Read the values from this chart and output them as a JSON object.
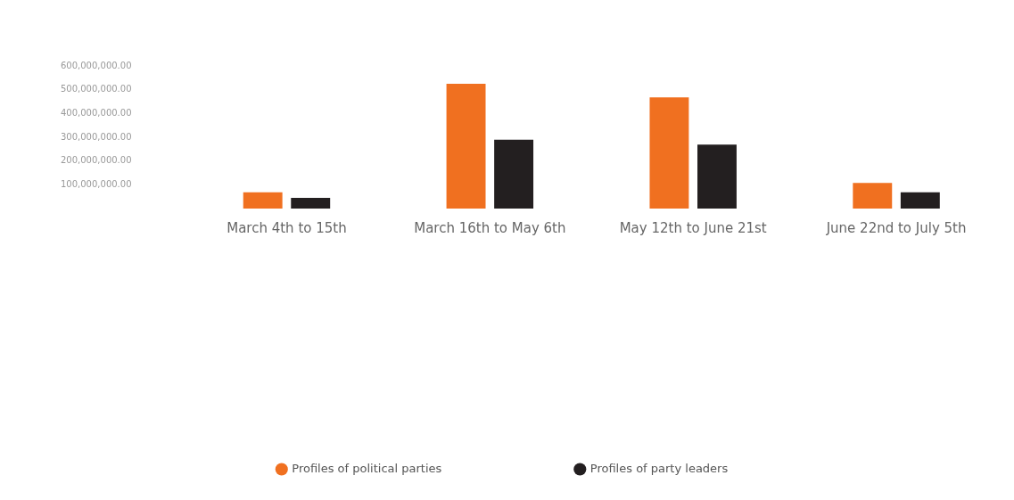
{
  "chart_data": {
    "type": "bar",
    "categories": [
      "March 4th to 15th",
      "March 16th to May 6th",
      "May 12th to June 21st",
      "June 22nd to July 5th"
    ],
    "series": [
      {
        "name": "Profiles of political parties",
        "color": "#f07020",
        "values": [
          68000000,
          525000000,
          468000000,
          108000000
        ]
      },
      {
        "name": "Profiles of party leaders",
        "color": "#231f20",
        "values": [
          45000000,
          290000000,
          269000000,
          68000000
        ]
      }
    ],
    "ylim": [
      0,
      600000000
    ],
    "yticks": [
      {
        "value": 100000000,
        "label": "100,000,000.00"
      },
      {
        "value": 200000000,
        "label": "200,000,000.00"
      },
      {
        "value": 300000000,
        "label": "300,000,000.00"
      },
      {
        "value": 400000000,
        "label": "400,000,000.00"
      },
      {
        "value": 500000000,
        "label": "500,000,000.00"
      },
      {
        "value": 600000000,
        "label": "600,000,000.00"
      }
    ],
    "grid": false,
    "legend": "bottom",
    "marker": "circle"
  }
}
